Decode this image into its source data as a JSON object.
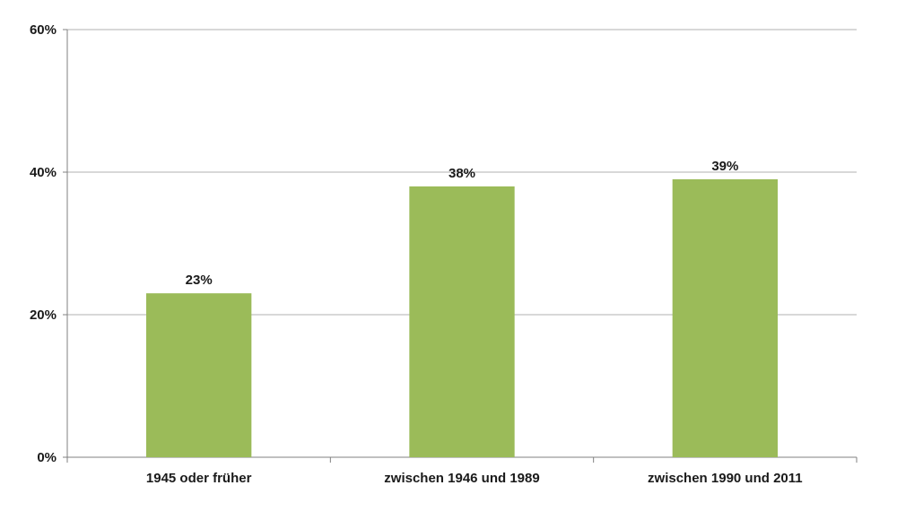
{
  "chart_data": {
    "type": "bar",
    "title": "",
    "xlabel": "",
    "ylabel": "",
    "categories": [
      "1945 oder früher",
      "zwischen 1946 und 1989",
      "zwischen 1990 und 2011"
    ],
    "values": [
      23,
      38,
      39
    ],
    "data_labels": [
      "23%",
      "38%",
      "39%"
    ],
    "ylim": [
      0,
      60
    ],
    "yticks": [
      0,
      20,
      40,
      60
    ],
    "ytick_labels": [
      "0%",
      "20%",
      "40%",
      "60%"
    ],
    "grid": true,
    "legend": "none",
    "colors": {
      "bar": "#9bbb59",
      "grid": "#b0b0b0",
      "axis": "#808080"
    }
  }
}
